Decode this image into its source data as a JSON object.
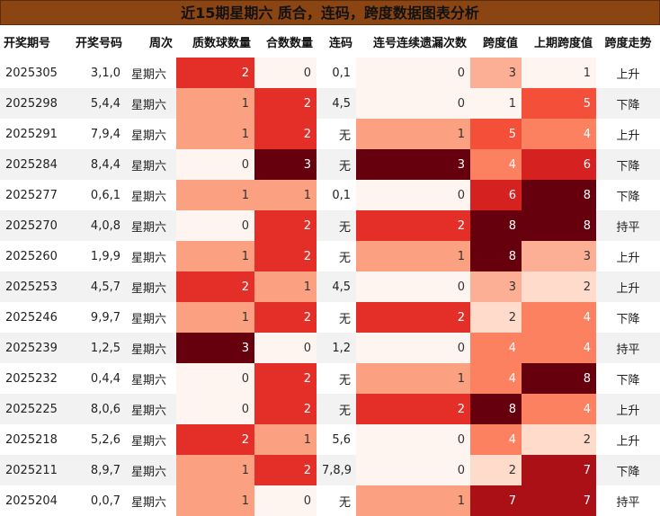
{
  "header": {
    "title": "近15期星期六 质合，连码，跨度数据图表分析"
  },
  "table": {
    "columns": [
      "开奖期号",
      "开奖号码",
      "周次",
      "质数球数量",
      "合数数量",
      "连码",
      "连号连续遗漏次数",
      "跨度值",
      "上期跨度值",
      "跨度走势"
    ],
    "rows": [
      [
        "2025305",
        "3,1,0",
        "星期六",
        2,
        0,
        "0,1",
        0,
        3,
        1,
        "上升"
      ],
      [
        "2025298",
        "5,4,4",
        "星期六",
        1,
        2,
        "4,5",
        0,
        1,
        5,
        "下降"
      ],
      [
        "2025291",
        "7,9,4",
        "星期六",
        1,
        2,
        "无",
        1,
        5,
        4,
        "上升"
      ],
      [
        "2025284",
        "8,4,4",
        "星期六",
        0,
        3,
        "无",
        3,
        4,
        6,
        "下降"
      ],
      [
        "2025277",
        "0,6,1",
        "星期六",
        1,
        1,
        "0,1",
        0,
        6,
        8,
        "下降"
      ],
      [
        "2025270",
        "4,0,8",
        "星期六",
        0,
        2,
        "无",
        2,
        8,
        8,
        "持平"
      ],
      [
        "2025260",
        "1,9,9",
        "星期六",
        1,
        2,
        "无",
        1,
        8,
        3,
        "上升"
      ],
      [
        "2025253",
        "4,5,7",
        "星期六",
        2,
        1,
        "4,5",
        0,
        3,
        2,
        "上升"
      ],
      [
        "2025246",
        "9,9,7",
        "星期六",
        1,
        2,
        "无",
        2,
        2,
        4,
        "下降"
      ],
      [
        "2025239",
        "1,2,5",
        "星期六",
        3,
        0,
        "1,2",
        0,
        4,
        4,
        "持平"
      ],
      [
        "2025232",
        "0,4,4",
        "星期六",
        0,
        2,
        "无",
        1,
        4,
        8,
        "下降"
      ],
      [
        "2025225",
        "8,0,6",
        "星期六",
        0,
        2,
        "无",
        2,
        8,
        4,
        "上升"
      ],
      [
        "2025218",
        "5,2,6",
        "星期六",
        2,
        1,
        "5,6",
        0,
        4,
        2,
        "上升"
      ],
      [
        "2025211",
        "8,9,7",
        "星期六",
        1,
        2,
        "7,8,9",
        0,
        2,
        7,
        "下降"
      ],
      [
        "2025204",
        "0,0,7",
        "星期六",
        1,
        0,
        "无",
        1,
        7,
        7,
        "持平"
      ]
    ]
  }
}
